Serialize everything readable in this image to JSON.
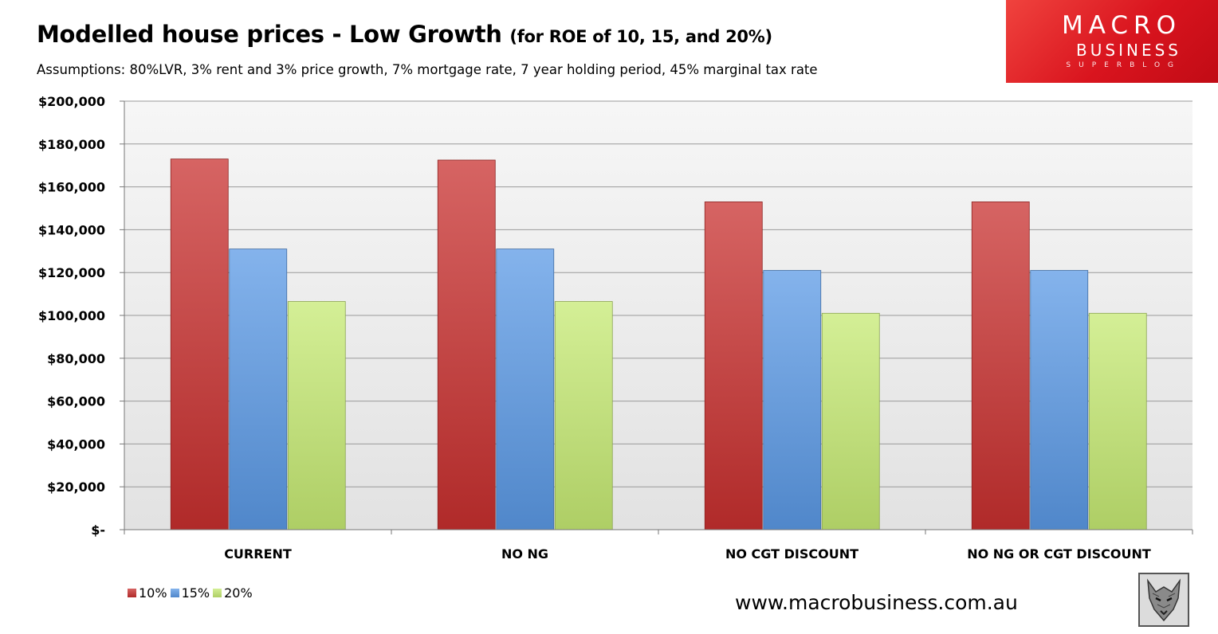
{
  "header": {
    "title": "Modelled house prices - Low Growth",
    "title_suffix": "(for ROE of 10, 15, and 20%)",
    "assumptions": "Assumptions: 80%LVR, 3% rent and 3% price growth, 7% mortgage rate, 7 year holding period, 45% marginal tax rate"
  },
  "logo": {
    "line1": "MACRO",
    "line2": "BUSINESS",
    "line3": "SUPERBLOG",
    "background": "#d9141e"
  },
  "footer": {
    "website": "www.macrobusiness.com.au",
    "emblem_icon": "wolf-icon"
  },
  "chart_data": {
    "type": "bar",
    "title": "",
    "xlabel": "",
    "ylabel": "",
    "categories": [
      "CURRENT",
      "NO NG",
      "NO CGT DISCOUNT",
      "NO NG OR CGT DISCOUNT"
    ],
    "series": [
      {
        "name": "10%",
        "color": "#c8302f",
        "values": [
          173000,
          172500,
          153000,
          153000
        ]
      },
      {
        "name": "15%",
        "color": "#5b99e6",
        "values": [
          131000,
          131000,
          121000,
          121000
        ]
      },
      {
        "name": "20%",
        "color": "#c6ea73",
        "values": [
          106500,
          106500,
          101000,
          101000
        ]
      }
    ],
    "ylim": [
      0,
      200000
    ],
    "yticks": [
      {
        "value": 0,
        "label": "$-"
      },
      {
        "value": 20000,
        "label": "$20,000"
      },
      {
        "value": 40000,
        "label": "$40,000"
      },
      {
        "value": 60000,
        "label": "$60,000"
      },
      {
        "value": 80000,
        "label": "$80,000"
      },
      {
        "value": 100000,
        "label": "$100,000"
      },
      {
        "value": 120000,
        "label": "$120,000"
      },
      {
        "value": 140000,
        "label": "$140,000"
      },
      {
        "value": 160000,
        "label": "$160,000"
      },
      {
        "value": 180000,
        "label": "$180,000"
      },
      {
        "value": 200000,
        "label": "$200,000"
      }
    ],
    "grid": true,
    "legend_position": "bottom-left"
  }
}
